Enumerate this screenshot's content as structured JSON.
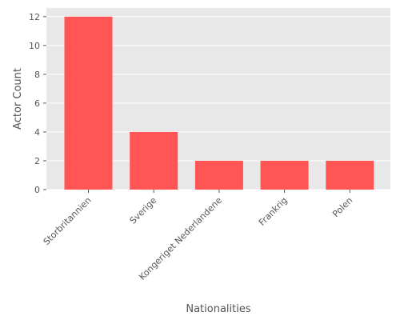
{
  "chart_data": {
    "type": "bar",
    "title": "",
    "xlabel": "Nationalities",
    "ylabel": "Actor Count",
    "categories": [
      "Storbritannien",
      "Sverige",
      "Kongeriget Nederlandene",
      "Frankrig",
      "Polen"
    ],
    "values": [
      12,
      4,
      2,
      2,
      2
    ],
    "ylim": [
      0,
      12.6
    ],
    "yticks": [
      0,
      2,
      4,
      6,
      8,
      10,
      12
    ],
    "grid": true,
    "legend": "none",
    "bar_color": "#ff5555",
    "background_color": "#e8e8e8",
    "grid_color": "#ffffff"
  }
}
